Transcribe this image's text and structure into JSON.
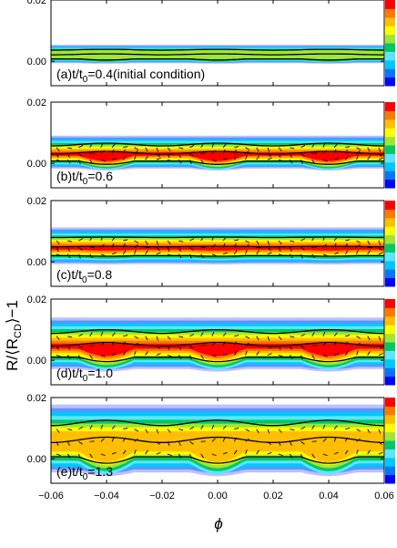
{
  "chart_data": {
    "type": "heatmap",
    "xlabel": "ϕ",
    "ylabel": "R/⟨R_CD⟩−1",
    "xlim": [
      -0.06,
      0.06
    ],
    "ylim": [
      -0.008,
      0.02
    ],
    "x_ticks": [
      -0.06,
      -0.04,
      -0.02,
      0.0,
      0.02,
      0.04,
      0.06
    ],
    "x_tick_labels": [
      "−0.06",
      "−0.04",
      "−0.02",
      "0.00",
      "0.02",
      "0.04",
      "0.06"
    ],
    "y_ticks": [
      0.0,
      0.02
    ],
    "y_tick_labels": [
      "0.00",
      "0.02"
    ],
    "grid": false,
    "colorbar": "right of each panel",
    "colors": [
      "#0000ff",
      "#0077ff",
      "#00c8ff",
      "#5ae6ff",
      "#00c864",
      "#a0e632",
      "#ffff00",
      "#ffbe00",
      "#ff7800",
      "#ff0000"
    ],
    "panels": [
      {
        "label_prefix": "(a)t/t",
        "sub": "0",
        "label_suffix": "=0.4(initial condition)",
        "t": 0.4,
        "band_low": -0.0005,
        "band_high": 0.0045,
        "wave": 0.0006,
        "core": 0.0,
        "vectors": false
      },
      {
        "label_prefix": "(b)t/t",
        "sub": "0",
        "label_suffix": "=0.6",
        "t": 0.6,
        "band_low": -0.0015,
        "band_high": 0.0075,
        "wave": 0.0018,
        "core": 0.7,
        "vectors": true
      },
      {
        "label_prefix": "(c)t/t",
        "sub": "0",
        "label_suffix": "=0.8",
        "t": 0.8,
        "band_low": -0.0005,
        "band_high": 0.0095,
        "wave": 0.0003,
        "core": 0.85,
        "vectors": true
      },
      {
        "label_prefix": "(d)t/t",
        "sub": "0",
        "label_suffix": "=1.0",
        "t": 1.0,
        "band_low": -0.0025,
        "band_high": 0.0115,
        "wave": 0.0024,
        "core": 0.75,
        "vectors": true
      },
      {
        "label_prefix": "(e)t/t",
        "sub": "0",
        "label_suffix": "=1.3",
        "t": 1.3,
        "band_low": -0.004,
        "band_high": 0.0145,
        "wave": 0.0035,
        "core": 0.55,
        "vectors": true
      }
    ]
  },
  "labels": {
    "xlabel": "ϕ",
    "ylabel_main": "R/⟨R",
    "ylabel_sub": "CD",
    "ylabel_tail": "⟩−1"
  }
}
